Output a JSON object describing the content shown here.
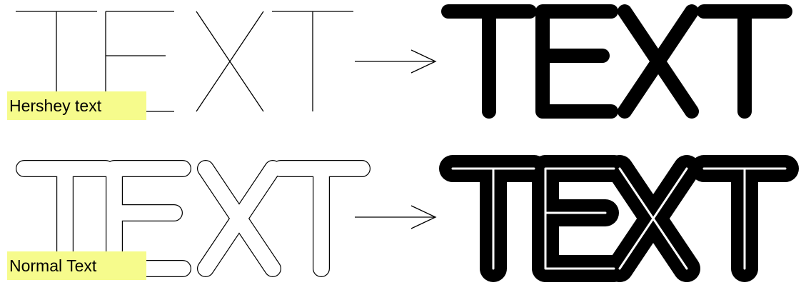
{
  "figure": {
    "rows": [
      {
        "caption": "Hershey text",
        "glyphs": "TEXT",
        "source_style": "single-stroke",
        "result_style": "thick-rounded-stroke"
      },
      {
        "caption": "Normal Text",
        "glyphs": "TEXT",
        "source_style": "outline",
        "result_style": "thick-stroked-outline"
      }
    ],
    "colors": {
      "stroke": "#000000",
      "caption_highlight": "#f6fb8c",
      "background": "#ffffff"
    },
    "icons": [
      "right-arrow-icon"
    ]
  }
}
